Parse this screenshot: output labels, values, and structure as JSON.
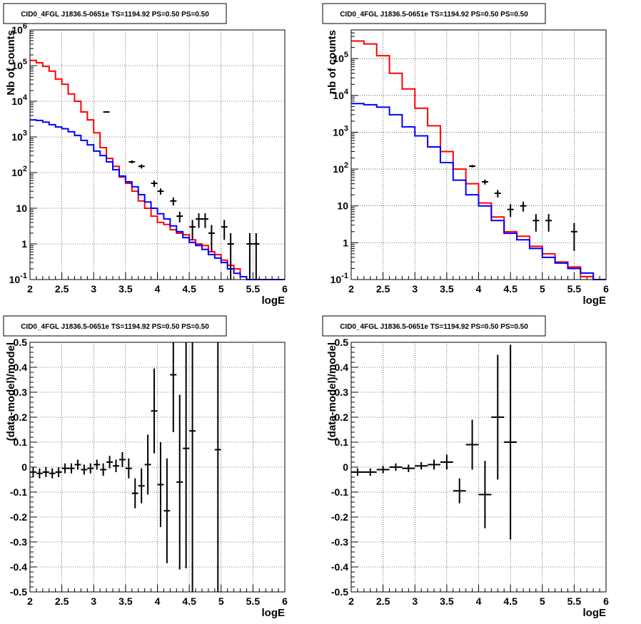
{
  "chart_data": [
    {
      "type": "histogram",
      "title": "CID0_4FGL J1836.5-0651e TS=1194.92 PS=0.50 PS=0.50",
      "xlabel": "logE",
      "ylabel": "Nb of counts",
      "xlim": [
        2,
        6
      ],
      "ylim": [
        0.1,
        1000000
      ],
      "yscale": "log",
      "grid": true,
      "xticks": [
        "2",
        "2.5",
        "3",
        "3.5",
        "4",
        "4.5",
        "5",
        "5.5",
        "6"
      ],
      "yticks": [
        {
          "v": 0.1,
          "base": "10",
          "exp": "-1"
        },
        {
          "v": 1,
          "label": "1"
        },
        {
          "v": 10,
          "label": "10"
        },
        {
          "v": 100,
          "base": "10",
          "exp": "2"
        },
        {
          "v": 1000,
          "base": "10",
          "exp": "3"
        },
        {
          "v": 10000,
          "base": "10",
          "exp": "4"
        },
        {
          "v": 100000,
          "base": "10",
          "exp": "5"
        },
        {
          "v": 1000000,
          "base": "10",
          "exp": "6"
        }
      ],
      "bin_edges": [
        2.0,
        2.1,
        2.2,
        2.3,
        2.4,
        2.5,
        2.6,
        2.7,
        2.8,
        2.9,
        3.0,
        3.1,
        3.2,
        3.3,
        3.4,
        3.5,
        3.6,
        3.7,
        3.8,
        3.9,
        4.0,
        4.1,
        4.2,
        4.3,
        4.4,
        4.5,
        4.6,
        4.7,
        4.8,
        4.9,
        5.0,
        5.1,
        5.2,
        5.3,
        5.4,
        5.5,
        5.6,
        5.7,
        5.8,
        5.9,
        6.0
      ],
      "series": [
        {
          "color": "#ff0000",
          "kind": "step",
          "values": [
            140000,
            120000,
            95000,
            70000,
            42000,
            30000,
            16000,
            10000,
            5000,
            3000,
            1300,
            500,
            250,
            150,
            75,
            50,
            30,
            16,
            10,
            6,
            4,
            3.5,
            2.5,
            2,
            1.8,
            1.3,
            1,
            0.9,
            0.6,
            0.5,
            0.35,
            0.25,
            0.2,
            0.12,
            0.1,
            0.1,
            0.1,
            0.1,
            0.1,
            0.1
          ]
        },
        {
          "color": "#0000ff",
          "kind": "step",
          "values": [
            3000,
            2900,
            2600,
            2200,
            1900,
            1700,
            1400,
            1100,
            800,
            600,
            400,
            300,
            200,
            120,
            80,
            55,
            40,
            24,
            15,
            10,
            7,
            5,
            3.2,
            2.2,
            1.5,
            1.1,
            0.9,
            0.7,
            0.5,
            0.4,
            0.3,
            0.2,
            0.15,
            0.12,
            0.1,
            0.1,
            0.1,
            0.1,
            0.1,
            0.1
          ]
        },
        {
          "color": "#000000",
          "kind": "errorbar",
          "points": [
            {
              "x": 3.2,
              "y": 5000,
              "lo": 4800,
              "hi": 5200
            },
            {
              "x": 3.6,
              "y": 200,
              "lo": 180,
              "hi": 220
            },
            {
              "x": 3.75,
              "y": 150,
              "lo": 130,
              "hi": 170
            },
            {
              "x": 3.95,
              "y": 50,
              "lo": 40,
              "hi": 60
            },
            {
              "x": 4.05,
              "y": 30,
              "lo": 24,
              "hi": 36
            },
            {
              "x": 4.25,
              "y": 16,
              "lo": 12,
              "hi": 20
            },
            {
              "x": 4.35,
              "y": 6,
              "lo": 4,
              "hi": 8
            },
            {
              "x": 4.55,
              "y": 3,
              "lo": 1.3,
              "hi": 4.7
            },
            {
              "x": 4.65,
              "y": 5,
              "lo": 2.8,
              "hi": 7.2
            },
            {
              "x": 4.75,
              "y": 5,
              "lo": 2.8,
              "hi": 7.2
            },
            {
              "x": 4.85,
              "y": 2,
              "lo": 0.6,
              "hi": 3.4
            },
            {
              "x": 5.05,
              "y": 3,
              "lo": 1.3,
              "hi": 4.7
            },
            {
              "x": 5.15,
              "y": 1,
              "lo": 0.1,
              "hi": 2
            },
            {
              "x": 5.45,
              "y": 1,
              "lo": 0.1,
              "hi": 2
            },
            {
              "x": 5.55,
              "y": 1,
              "lo": 0.1,
              "hi": 2
            }
          ]
        }
      ]
    },
    {
      "type": "histogram",
      "title": "CID0_4FGL J1836.5-0651e TS=1194.92 PS=0.50 PS=0.50",
      "xlabel": "logE",
      "ylabel": "nb of counts",
      "xlim": [
        2,
        6
      ],
      "ylim": [
        0.1,
        600000
      ],
      "yscale": "log",
      "grid": true,
      "xticks": [
        "2",
        "2.5",
        "3",
        "3.5",
        "4",
        "4.5",
        "5",
        "5.5",
        "6"
      ],
      "yticks": [
        {
          "v": 0.1,
          "base": "10",
          "exp": "-1"
        },
        {
          "v": 1,
          "label": "1"
        },
        {
          "v": 10,
          "label": "10"
        },
        {
          "v": 100,
          "base": "10",
          "exp": "2"
        },
        {
          "v": 1000,
          "base": "10",
          "exp": "3"
        },
        {
          "v": 10000,
          "base": "10",
          "exp": "4"
        },
        {
          "v": 100000,
          "base": "10",
          "exp": "5"
        }
      ],
      "bin_edges": [
        2.0,
        2.2,
        2.4,
        2.6,
        2.8,
        3.0,
        3.2,
        3.4,
        3.6,
        3.8,
        4.0,
        4.2,
        4.4,
        4.6,
        4.8,
        5.0,
        5.2,
        5.4,
        5.6,
        5.8,
        6.0
      ],
      "series": [
        {
          "color": "#ff0000",
          "kind": "step",
          "values": [
            300000,
            250000,
            120000,
            40000,
            15000,
            4500,
            1500,
            300,
            100,
            40,
            12,
            5,
            2,
            1.5,
            0.8,
            0.5,
            0.3,
            0.22,
            0.12,
            0.1
          ]
        },
        {
          "color": "#0000ff",
          "kind": "step",
          "values": [
            6000,
            5600,
            4800,
            3000,
            1400,
            800,
            400,
            150,
            50,
            20,
            10,
            4,
            1.8,
            1.2,
            0.7,
            0.4,
            0.28,
            0.2,
            0.15,
            0.1
          ]
        },
        {
          "color": "#000000",
          "kind": "errorbar",
          "points": [
            {
              "x": 3.9,
              "y": 120,
              "lo": 110,
              "hi": 130
            },
            {
              "x": 4.1,
              "y": 45,
              "lo": 38,
              "hi": 52
            },
            {
              "x": 4.3,
              "y": 22,
              "lo": 17,
              "hi": 27
            },
            {
              "x": 4.5,
              "y": 8,
              "lo": 5,
              "hi": 11
            },
            {
              "x": 4.7,
              "y": 10,
              "lo": 7,
              "hi": 13
            },
            {
              "x": 4.9,
              "y": 4,
              "lo": 2,
              "hi": 6
            },
            {
              "x": 5.1,
              "y": 4,
              "lo": 2,
              "hi": 6
            },
            {
              "x": 5.5,
              "y": 2,
              "lo": 0.6,
              "hi": 3.4
            }
          ]
        }
      ]
    },
    {
      "type": "scatter",
      "title": "CID0_4FGL J1836.5-0651e TS=1194.92 PS=0.50 PS=0.50",
      "xlabel": "logE",
      "ylabel": "(data-model)/model",
      "xlim": [
        2,
        6
      ],
      "ylim": [
        -0.5,
        0.5
      ],
      "yscale": "linear",
      "grid": true,
      "xticks": [
        "2",
        "2.5",
        "3",
        "3.5",
        "4",
        "4.5",
        "5",
        "5.5",
        "6"
      ],
      "yticks": [
        {
          "v": -0.5,
          "label": "-0.5"
        },
        {
          "v": -0.4,
          "label": "-0.4"
        },
        {
          "v": -0.3,
          "label": "-0.3"
        },
        {
          "v": -0.2,
          "label": "-0.2"
        },
        {
          "v": -0.1,
          "label": "-0.1"
        },
        {
          "v": 0,
          "label": "0"
        },
        {
          "v": 0.1,
          "label": "0.1"
        },
        {
          "v": 0.2,
          "label": "0.2"
        },
        {
          "v": 0.3,
          "label": "0.3"
        },
        {
          "v": 0.4,
          "label": "0.4"
        },
        {
          "v": 0.5,
          "label": "0.5"
        }
      ],
      "xerr": 0.05,
      "series": [
        {
          "color": "#000000",
          "kind": "errorbar",
          "points": [
            {
              "x": 2.05,
              "y": -0.02,
              "err": 0.02
            },
            {
              "x": 2.15,
              "y": -0.025,
              "err": 0.02
            },
            {
              "x": 2.25,
              "y": -0.02,
              "err": 0.02
            },
            {
              "x": 2.35,
              "y": -0.025,
              "err": 0.02
            },
            {
              "x": 2.45,
              "y": -0.02,
              "err": 0.02
            },
            {
              "x": 2.55,
              "y": -0.005,
              "err": 0.02
            },
            {
              "x": 2.65,
              "y": -0.005,
              "err": 0.02
            },
            {
              "x": 2.75,
              "y": 0.01,
              "err": 0.02
            },
            {
              "x": 2.85,
              "y": -0.01,
              "err": 0.02
            },
            {
              "x": 2.95,
              "y": -0.005,
              "err": 0.02
            },
            {
              "x": 3.05,
              "y": 0.01,
              "err": 0.02
            },
            {
              "x": 3.15,
              "y": -0.01,
              "err": 0.025
            },
            {
              "x": 3.25,
              "y": 0.02,
              "err": 0.025
            },
            {
              "x": 3.35,
              "y": 0.005,
              "err": 0.025
            },
            {
              "x": 3.45,
              "y": 0.03,
              "err": 0.03
            },
            {
              "x": 3.55,
              "y": -0.005,
              "err": 0.04
            },
            {
              "x": 3.65,
              "y": -0.105,
              "err": 0.06
            },
            {
              "x": 3.75,
              "y": -0.075,
              "err": 0.07
            },
            {
              "x": 3.85,
              "y": 0.01,
              "err": 0.12
            },
            {
              "x": 3.95,
              "y": 0.225,
              "err": 0.17
            },
            {
              "x": 4.05,
              "y": -0.07,
              "err": 0.17
            },
            {
              "x": 4.15,
              "y": -0.175,
              "err": 0.21
            },
            {
              "x": 4.25,
              "y": 0.37,
              "err": 0.23
            },
            {
              "x": 4.35,
              "y": -0.06,
              "err": 0.35
            },
            {
              "x": 4.45,
              "y": 0.075,
              "err": 0.48
            },
            {
              "x": 4.55,
              "y": 0.145,
              "err": 0.7
            },
            {
              "x": 4.95,
              "y": 0.07,
              "err": 1.0
            }
          ]
        }
      ]
    },
    {
      "type": "scatter",
      "title": "CID0_4FGL J1836.5-0651e TS=1194.92 PS=0.50 PS=0.50",
      "xlabel": "logE",
      "ylabel": "(data-model)/model",
      "xlim": [
        2,
        6
      ],
      "ylim": [
        -0.5,
        0.5
      ],
      "yscale": "linear",
      "grid": true,
      "xticks": [
        "2",
        "2.5",
        "3",
        "3.5",
        "4",
        "4.5",
        "5",
        "5.5",
        "6"
      ],
      "yticks": [
        {
          "v": -0.5,
          "label": "-0.5"
        },
        {
          "v": -0.4,
          "label": "-0.4"
        },
        {
          "v": -0.3,
          "label": "-0.3"
        },
        {
          "v": -0.2,
          "label": "-0.2"
        },
        {
          "v": -0.1,
          "label": "-0.1"
        },
        {
          "v": 0,
          "label": "0"
        },
        {
          "v": 0.1,
          "label": "0.1"
        },
        {
          "v": 0.2,
          "label": "0.2"
        },
        {
          "v": 0.3,
          "label": "0.3"
        },
        {
          "v": 0.4,
          "label": "0.4"
        },
        {
          "v": 0.5,
          "label": "0.5"
        }
      ],
      "xerr": 0.1,
      "series": [
        {
          "color": "#000000",
          "kind": "errorbar",
          "points": [
            {
              "x": 2.1,
              "y": -0.02,
              "err": 0.015
            },
            {
              "x": 2.3,
              "y": -0.02,
              "err": 0.015
            },
            {
              "x": 2.5,
              "y": -0.01,
              "err": 0.015
            },
            {
              "x": 2.7,
              "y": 0.0,
              "err": 0.015
            },
            {
              "x": 2.9,
              "y": -0.005,
              "err": 0.015
            },
            {
              "x": 3.1,
              "y": 0.005,
              "err": 0.015
            },
            {
              "x": 3.3,
              "y": 0.01,
              "err": 0.02
            },
            {
              "x": 3.5,
              "y": 0.02,
              "err": 0.03
            },
            {
              "x": 3.7,
              "y": -0.095,
              "err": 0.05
            },
            {
              "x": 3.9,
              "y": 0.09,
              "err": 0.1
            },
            {
              "x": 4.1,
              "y": -0.11,
              "err": 0.135
            },
            {
              "x": 4.3,
              "y": 0.2,
              "err": 0.25
            },
            {
              "x": 4.5,
              "y": 0.1,
              "err": 0.39
            }
          ]
        }
      ]
    }
  ]
}
